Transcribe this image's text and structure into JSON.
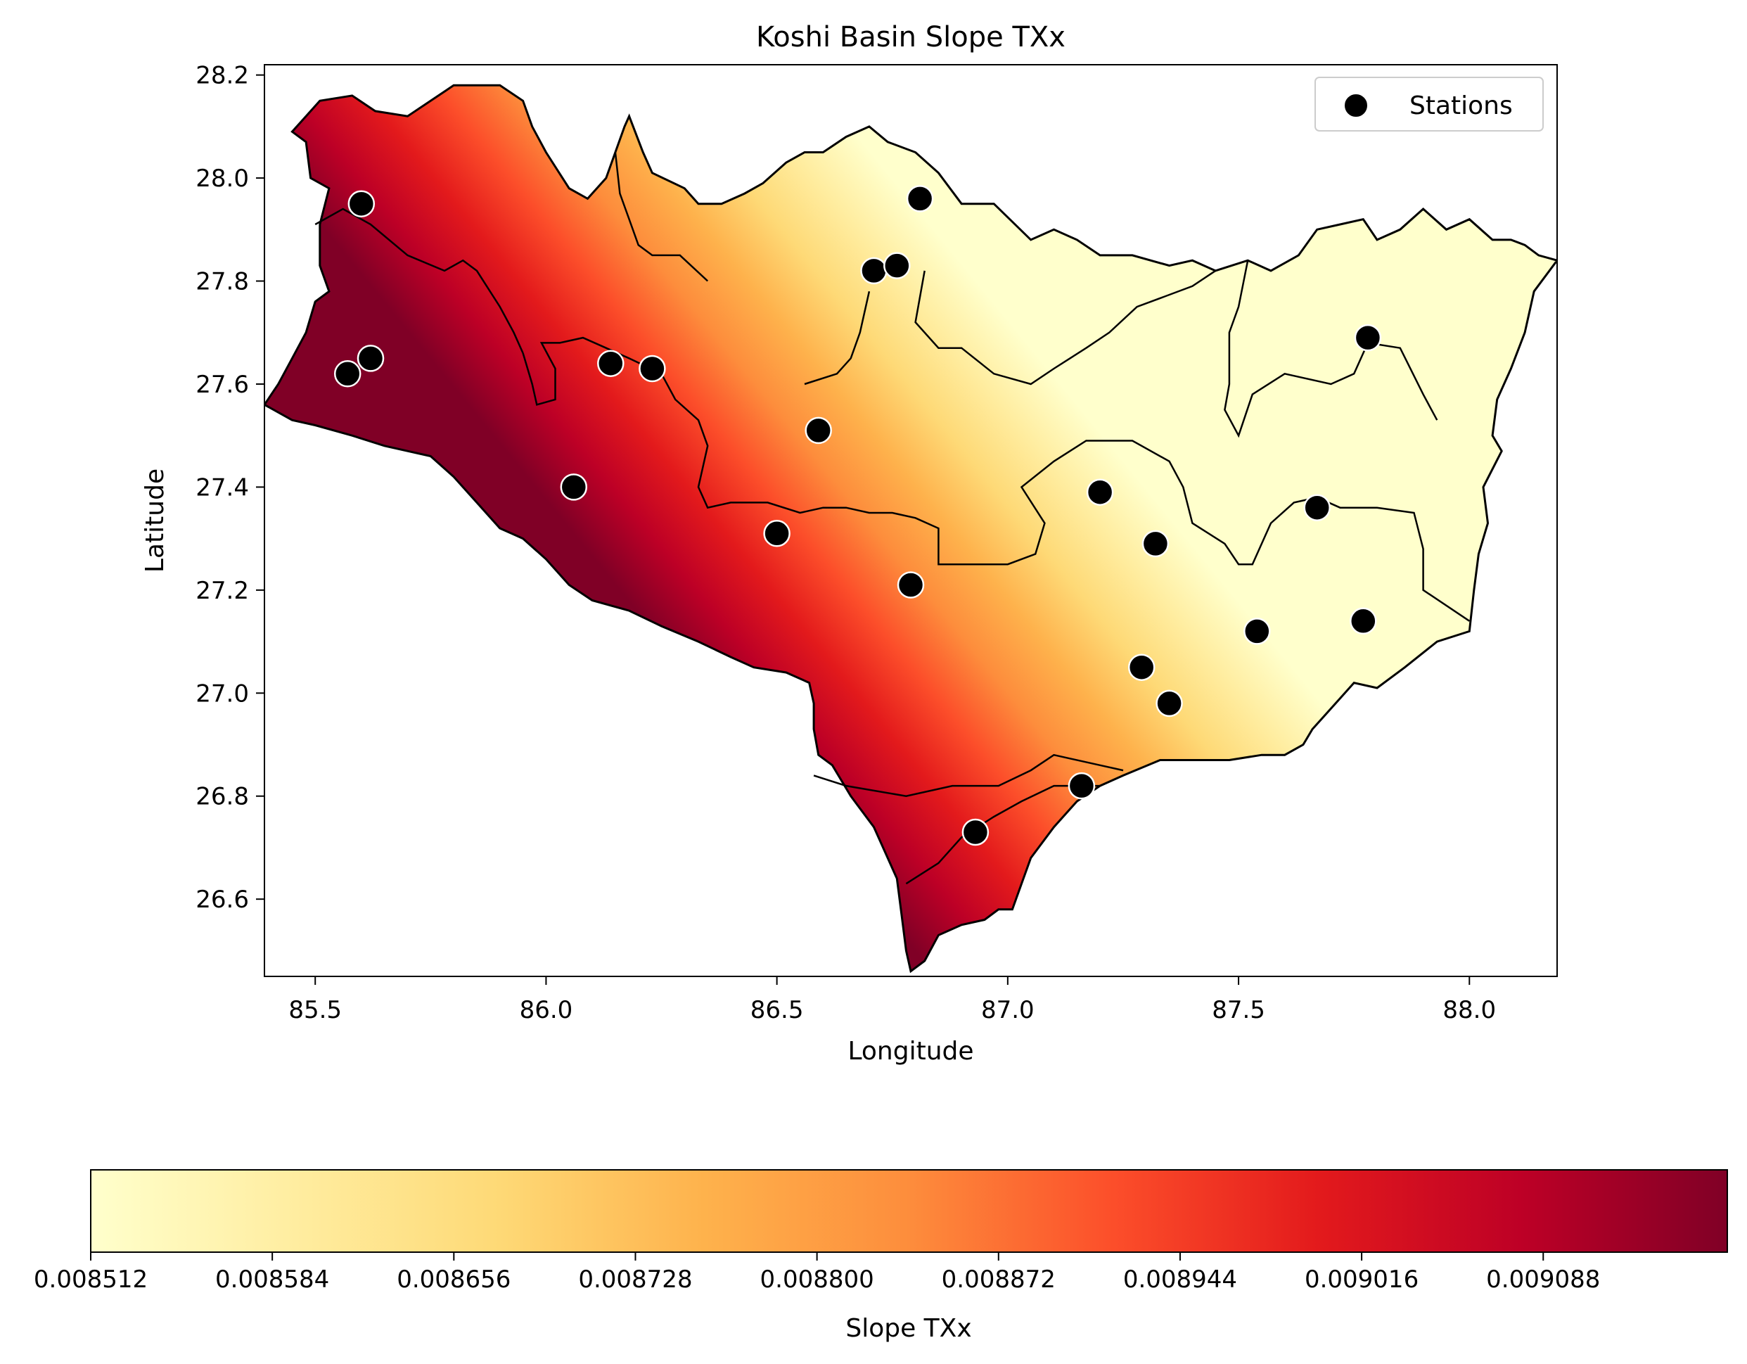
{
  "chart_data": {
    "type": "map",
    "title": "Koshi Basin Slope TXx",
    "xlabel": "Longitude",
    "ylabel": "Latitude",
    "xlim": [
      85.39,
      88.19
    ],
    "ylim": [
      26.45,
      28.22
    ],
    "xticks": [
      "85.5",
      "86.0",
      "86.5",
      "87.0",
      "87.5",
      "88.0"
    ],
    "xtick_values": [
      85.5,
      86.0,
      86.5,
      87.0,
      87.5,
      88.0
    ],
    "yticks": [
      "26.6",
      "26.8",
      "27.0",
      "27.2",
      "27.4",
      "27.6",
      "27.8",
      "28.0",
      "28.2"
    ],
    "ytick_values": [
      26.6,
      26.8,
      27.0,
      27.2,
      27.4,
      27.6,
      27.8,
      28.0,
      28.2
    ],
    "legend": {
      "label": "Stations",
      "placement": "top-right"
    },
    "colormap": "YlOrRd",
    "colormap_stops": [
      "#ffffcc",
      "#ffeda0",
      "#fed976",
      "#feb24c",
      "#fd8d3c",
      "#fc4e2a",
      "#e31a1c",
      "#bd0026",
      "#800026"
    ],
    "colorbar": {
      "label": "Slope TXx",
      "range": [
        0.008512,
        0.009161
      ],
      "ticks": [
        "0.008512",
        "0.008584",
        "0.008656",
        "0.008728",
        "0.008800",
        "0.008872",
        "0.008944",
        "0.009016",
        "0.009088"
      ],
      "tick_values": [
        0.008512,
        0.008584,
        0.008656,
        0.008728,
        0.0088,
        0.008872,
        0.008944,
        0.009016,
        0.009088
      ]
    },
    "stations": [
      {
        "lon": 85.6,
        "lat": 27.95
      },
      {
        "lon": 85.57,
        "lat": 27.62
      },
      {
        "lon": 85.62,
        "lat": 27.65
      },
      {
        "lon": 86.06,
        "lat": 27.4
      },
      {
        "lon": 86.14,
        "lat": 27.64
      },
      {
        "lon": 86.23,
        "lat": 27.63
      },
      {
        "lon": 86.5,
        "lat": 27.31
      },
      {
        "lon": 86.59,
        "lat": 27.51
      },
      {
        "lon": 86.71,
        "lat": 27.82
      },
      {
        "lon": 86.76,
        "lat": 27.83
      },
      {
        "lon": 86.81,
        "lat": 27.96
      },
      {
        "lon": 86.79,
        "lat": 27.21
      },
      {
        "lon": 86.93,
        "lat": 26.73
      },
      {
        "lon": 87.16,
        "lat": 26.82
      },
      {
        "lon": 87.2,
        "lat": 27.39
      },
      {
        "lon": 87.29,
        "lat": 27.05
      },
      {
        "lon": 87.32,
        "lat": 27.29
      },
      {
        "lon": 87.35,
        "lat": 26.98
      },
      {
        "lon": 87.54,
        "lat": 27.12
      },
      {
        "lon": 87.67,
        "lat": 27.36
      },
      {
        "lon": 87.77,
        "lat": 27.14
      },
      {
        "lon": 87.78,
        "lat": 27.69
      }
    ],
    "basin_boundary": [
      [
        85.39,
        27.56
      ],
      [
        85.42,
        27.6
      ],
      [
        85.45,
        27.65
      ],
      [
        85.48,
        27.7
      ],
      [
        85.5,
        27.76
      ],
      [
        85.53,
        27.78
      ],
      [
        85.51,
        27.83
      ],
      [
        85.51,
        27.91
      ],
      [
        85.53,
        27.98
      ],
      [
        85.49,
        28.0
      ],
      [
        85.48,
        28.07
      ],
      [
        85.45,
        28.09
      ],
      [
        85.48,
        28.12
      ],
      [
        85.51,
        28.15
      ],
      [
        85.58,
        28.16
      ],
      [
        85.63,
        28.13
      ],
      [
        85.7,
        28.12
      ],
      [
        85.8,
        28.18
      ],
      [
        85.9,
        28.18
      ],
      [
        85.95,
        28.15
      ],
      [
        85.97,
        28.1
      ],
      [
        86.0,
        28.05
      ],
      [
        86.05,
        27.98
      ],
      [
        86.09,
        27.96
      ],
      [
        86.13,
        28.0
      ],
      [
        86.15,
        28.05
      ],
      [
        86.17,
        28.1
      ],
      [
        86.18,
        28.12
      ],
      [
        86.21,
        28.05
      ],
      [
        86.23,
        28.01
      ],
      [
        86.3,
        27.98
      ],
      [
        86.33,
        27.95
      ],
      [
        86.38,
        27.95
      ],
      [
        86.43,
        27.97
      ],
      [
        86.47,
        27.99
      ],
      [
        86.52,
        28.03
      ],
      [
        86.56,
        28.05
      ],
      [
        86.6,
        28.05
      ],
      [
        86.65,
        28.08
      ],
      [
        86.7,
        28.1
      ],
      [
        86.74,
        28.07
      ],
      [
        86.8,
        28.05
      ],
      [
        86.85,
        28.01
      ],
      [
        86.9,
        27.95
      ],
      [
        86.97,
        27.95
      ],
      [
        87.05,
        27.88
      ],
      [
        87.1,
        27.9
      ],
      [
        87.15,
        27.88
      ],
      [
        87.2,
        27.85
      ],
      [
        87.27,
        27.85
      ],
      [
        87.35,
        27.83
      ],
      [
        87.4,
        27.84
      ],
      [
        87.45,
        27.82
      ],
      [
        87.52,
        27.84
      ],
      [
        87.57,
        27.82
      ],
      [
        87.63,
        27.85
      ],
      [
        87.67,
        27.9
      ],
      [
        87.72,
        27.91
      ],
      [
        87.77,
        27.92
      ],
      [
        87.8,
        27.88
      ],
      [
        87.85,
        27.9
      ],
      [
        87.9,
        27.94
      ],
      [
        87.95,
        27.9
      ],
      [
        88.0,
        27.92
      ],
      [
        88.05,
        27.88
      ],
      [
        88.09,
        27.88
      ],
      [
        88.12,
        27.87
      ],
      [
        88.15,
        27.85
      ],
      [
        88.19,
        27.84
      ],
      [
        88.14,
        27.78
      ],
      [
        88.12,
        27.7
      ],
      [
        88.09,
        27.63
      ],
      [
        88.06,
        27.57
      ],
      [
        88.05,
        27.5
      ],
      [
        88.07,
        27.47
      ],
      [
        88.03,
        27.4
      ],
      [
        88.04,
        27.33
      ],
      [
        88.02,
        27.27
      ],
      [
        88.01,
        27.2
      ],
      [
        88.0,
        27.12
      ],
      [
        87.93,
        27.1
      ],
      [
        87.86,
        27.05
      ],
      [
        87.8,
        27.01
      ],
      [
        87.75,
        27.02
      ],
      [
        87.7,
        26.97
      ],
      [
        87.66,
        26.93
      ],
      [
        87.64,
        26.9
      ],
      [
        87.6,
        26.88
      ],
      [
        87.55,
        26.88
      ],
      [
        87.48,
        26.87
      ],
      [
        87.4,
        26.87
      ],
      [
        87.33,
        26.87
      ],
      [
        87.25,
        26.84
      ],
      [
        87.2,
        26.82
      ],
      [
        87.15,
        26.79
      ],
      [
        87.1,
        26.74
      ],
      [
        87.05,
        26.68
      ],
      [
        87.03,
        26.63
      ],
      [
        87.01,
        26.58
      ],
      [
        86.98,
        26.58
      ],
      [
        86.95,
        26.56
      ],
      [
        86.9,
        26.55
      ],
      [
        86.85,
        26.53
      ],
      [
        86.82,
        26.48
      ],
      [
        86.79,
        26.46
      ],
      [
        86.78,
        26.5
      ],
      [
        86.77,
        26.57
      ],
      [
        86.76,
        26.64
      ],
      [
        86.73,
        26.7
      ],
      [
        86.71,
        26.74
      ],
      [
        86.66,
        26.8
      ],
      [
        86.62,
        26.86
      ],
      [
        86.59,
        26.88
      ],
      [
        86.58,
        26.93
      ],
      [
        86.58,
        26.98
      ],
      [
        86.57,
        27.02
      ],
      [
        86.52,
        27.04
      ],
      [
        86.45,
        27.05
      ],
      [
        86.4,
        27.07
      ],
      [
        86.33,
        27.1
      ],
      [
        86.25,
        27.13
      ],
      [
        86.18,
        27.16
      ],
      [
        86.1,
        27.18
      ],
      [
        86.05,
        27.21
      ],
      [
        86.0,
        27.26
      ],
      [
        85.95,
        27.3
      ],
      [
        85.9,
        27.32
      ],
      [
        85.85,
        27.37
      ],
      [
        85.8,
        27.42
      ],
      [
        85.75,
        27.46
      ],
      [
        85.7,
        27.47
      ],
      [
        85.65,
        27.48
      ],
      [
        85.58,
        27.5
      ],
      [
        85.5,
        27.52
      ],
      [
        85.45,
        27.53
      ],
      [
        85.39,
        27.56
      ]
    ],
    "sub_boundaries": [
      [
        [
          85.5,
          27.91
        ],
        [
          85.56,
          27.94
        ],
        [
          85.62,
          27.91
        ],
        [
          85.7,
          27.85
        ],
        [
          85.78,
          27.82
        ],
        [
          85.82,
          27.84
        ],
        [
          85.85,
          27.82
        ],
        [
          85.9,
          27.75
        ],
        [
          85.93,
          27.7
        ],
        [
          85.95,
          27.66
        ]
      ],
      [
        [
          85.95,
          27.66
        ],
        [
          85.97,
          27.6
        ],
        [
          85.98,
          27.56
        ],
        [
          86.02,
          27.57
        ],
        [
          86.02,
          27.63
        ],
        [
          85.99,
          27.68
        ],
        [
          86.03,
          27.68
        ],
        [
          86.08,
          27.69
        ],
        [
          86.13,
          27.67
        ],
        [
          86.18,
          27.65
        ],
        [
          86.25,
          27.62
        ],
        [
          86.28,
          27.57
        ],
        [
          86.33,
          27.53
        ],
        [
          86.35,
          27.48
        ],
        [
          86.33,
          27.4
        ],
        [
          86.35,
          27.36
        ],
        [
          86.4,
          27.37
        ],
        [
          86.48,
          27.37
        ],
        [
          86.55,
          27.35
        ],
        [
          86.6,
          27.36
        ],
        [
          86.65,
          27.36
        ],
        [
          86.7,
          27.35
        ],
        [
          86.75,
          27.35
        ],
        [
          86.8,
          27.34
        ],
        [
          86.85,
          27.32
        ],
        [
          86.85,
          27.25
        ],
        [
          86.9,
          27.25
        ],
        [
          87.0,
          27.25
        ],
        [
          87.06,
          27.27
        ],
        [
          87.08,
          27.33
        ],
        [
          87.03,
          27.4
        ],
        [
          87.1,
          27.45
        ],
        [
          87.17,
          27.49
        ],
        [
          87.27,
          27.49
        ],
        [
          87.35,
          27.45
        ],
        [
          87.38,
          27.4
        ],
        [
          87.4,
          27.33
        ],
        [
          87.47,
          27.29
        ],
        [
          87.5,
          27.25
        ],
        [
          87.53,
          27.25
        ],
        [
          87.57,
          27.33
        ],
        [
          87.62,
          27.37
        ],
        [
          87.67,
          27.38
        ],
        [
          87.72,
          27.36
        ],
        [
          87.8,
          27.36
        ],
        [
          87.88,
          27.35
        ],
        [
          87.9,
          27.28
        ],
        [
          87.9,
          27.2
        ],
        [
          88.0,
          27.14
        ]
      ],
      [
        [
          86.82,
          27.82
        ],
        [
          86.8,
          27.72
        ],
        [
          86.85,
          27.67
        ],
        [
          86.9,
          27.67
        ],
        [
          86.97,
          27.62
        ],
        [
          87.05,
          27.6
        ],
        [
          87.1,
          27.63
        ],
        [
          87.17,
          27.67
        ],
        [
          87.22,
          27.7
        ],
        [
          87.28,
          27.75
        ],
        [
          87.34,
          27.77
        ],
        [
          87.4,
          27.79
        ],
        [
          87.45,
          27.82
        ]
      ],
      [
        [
          86.7,
          27.78
        ],
        [
          86.68,
          27.7
        ],
        [
          86.66,
          27.65
        ],
        [
          86.63,
          27.62
        ],
        [
          86.56,
          27.6
        ]
      ],
      [
        [
          87.52,
          27.84
        ],
        [
          87.5,
          27.75
        ],
        [
          87.48,
          27.7
        ],
        [
          87.48,
          27.6
        ],
        [
          87.47,
          27.55
        ],
        [
          87.5,
          27.5
        ],
        [
          87.53,
          27.58
        ],
        [
          87.6,
          27.62
        ],
        [
          87.7,
          27.6
        ],
        [
          87.75,
          27.62
        ],
        [
          87.78,
          27.68
        ],
        [
          87.85,
          27.67
        ],
        [
          87.9,
          27.58
        ],
        [
          87.93,
          27.53
        ]
      ],
      [
        [
          86.15,
          28.05
        ],
        [
          86.16,
          27.97
        ],
        [
          86.18,
          27.92
        ],
        [
          86.2,
          27.87
        ],
        [
          86.23,
          27.85
        ],
        [
          86.29,
          27.85
        ],
        [
          86.35,
          27.8
        ]
      ],
      [
        [
          86.58,
          26.84
        ],
        [
          86.65,
          26.82
        ],
        [
          86.78,
          26.8
        ],
        [
          86.88,
          26.82
        ],
        [
          86.98,
          26.82
        ],
        [
          87.05,
          26.85
        ],
        [
          87.1,
          26.88
        ],
        [
          87.2,
          26.86
        ],
        [
          87.25,
          26.85
        ]
      ],
      [
        [
          86.78,
          26.63
        ],
        [
          86.85,
          26.67
        ],
        [
          86.9,
          26.72
        ],
        [
          86.97,
          26.76
        ],
        [
          87.03,
          26.79
        ],
        [
          87.1,
          26.82
        ],
        [
          87.2,
          26.82
        ]
      ]
    ],
    "field_extremes": [
      {
        "lon": 86.84,
        "lat": 27.9,
        "value": 0.008512
      },
      {
        "lon": 86.05,
        "lat": 27.32,
        "value": 0.009161
      }
    ]
  }
}
